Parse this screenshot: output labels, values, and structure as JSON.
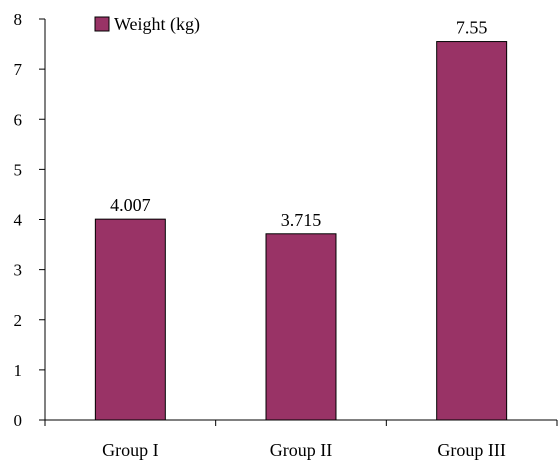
{
  "chart_data": {
    "type": "bar",
    "categories": [
      "Group I",
      "Group II",
      "Group III"
    ],
    "series": [
      {
        "name": "Weight (kg)",
        "values": [
          4.007,
          3.715,
          7.55
        ],
        "color": "#993366"
      }
    ],
    "data_labels": [
      "4.007",
      "3.715",
      "7.55"
    ],
    "ylim": [
      0,
      8
    ],
    "yticks": [
      0,
      1,
      2,
      3,
      4,
      5,
      6,
      7,
      8
    ],
    "grid": false,
    "legend": {
      "position": "top-left",
      "label": "Weight (kg)"
    },
    "title": "",
    "xlabel": "",
    "ylabel": ""
  }
}
